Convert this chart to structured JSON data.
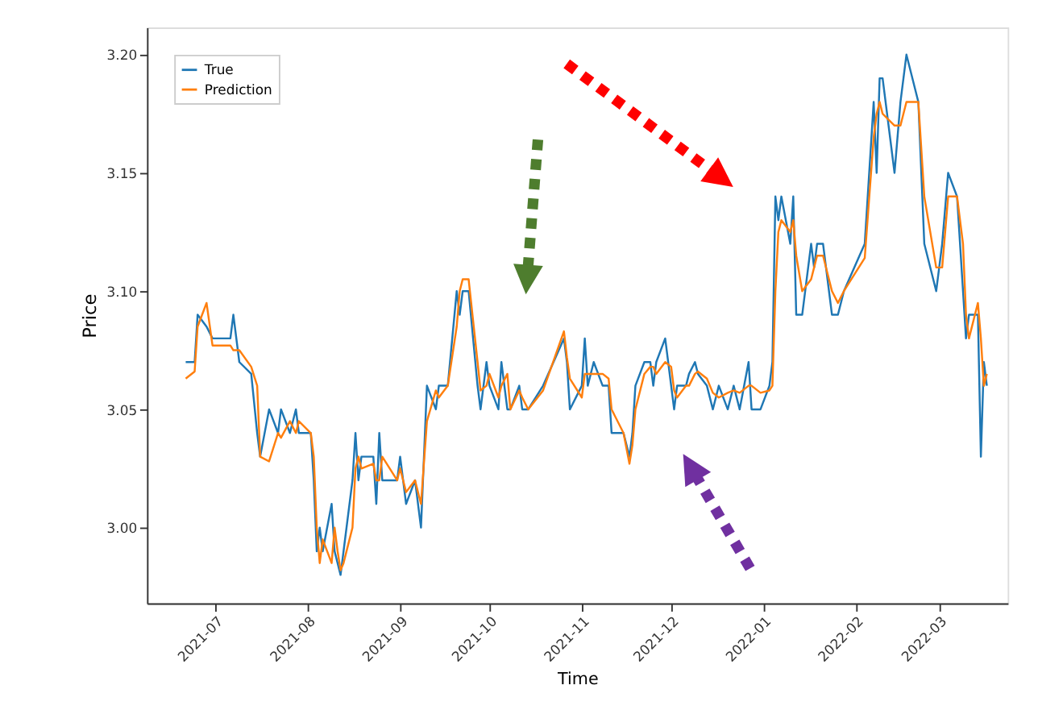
{
  "chart_data": {
    "type": "line",
    "xlabel": "Time",
    "ylabel": "Price",
    "x": [
      "2021-06-21",
      "2021-06-24",
      "2021-06-25",
      "2021-06-28",
      "2021-06-30",
      "2021-07-06",
      "2021-07-07",
      "2021-07-09",
      "2021-07-13",
      "2021-07-15",
      "2021-07-16",
      "2021-07-19",
      "2021-07-22",
      "2021-07-23",
      "2021-07-26",
      "2021-07-28",
      "2021-07-29",
      "2021-08-02",
      "2021-08-03",
      "2021-08-04",
      "2021-08-05",
      "2021-08-06",
      "2021-08-09",
      "2021-08-10",
      "2021-08-11",
      "2021-08-12",
      "2021-08-13",
      "2021-08-16",
      "2021-08-17",
      "2021-08-18",
      "2021-08-19",
      "2021-08-23",
      "2021-08-24",
      "2021-08-25",
      "2021-08-26",
      "2021-08-31",
      "2021-09-01",
      "2021-09-03",
      "2021-09-06",
      "2021-09-08",
      "2021-09-10",
      "2021-09-13",
      "2021-09-14",
      "2021-09-17",
      "2021-09-20",
      "2021-09-21",
      "2021-09-22",
      "2021-09-24",
      "2021-09-27",
      "2021-09-28",
      "2021-09-30",
      "2021-10-01",
      "2021-10-04",
      "2021-10-05",
      "2021-10-07",
      "2021-10-08",
      "2021-10-11",
      "2021-10-12",
      "2021-10-14",
      "2021-10-19",
      "2021-10-26",
      "2021-10-27",
      "2021-10-28",
      "2021-11-01",
      "2021-11-02",
      "2021-11-03",
      "2021-11-05",
      "2021-11-08",
      "2021-11-10",
      "2021-11-11",
      "2021-11-15",
      "2021-11-17",
      "2021-11-18",
      "2021-11-19",
      "2021-11-22",
      "2021-11-24",
      "2021-11-25",
      "2021-11-26",
      "2021-11-29",
      "2021-12-01",
      "2021-12-02",
      "2021-12-03",
      "2021-12-06",
      "2021-12-07",
      "2021-12-09",
      "2021-12-10",
      "2021-12-13",
      "2021-12-15",
      "2021-12-17",
      "2021-12-20",
      "2021-12-22",
      "2021-12-24",
      "2021-12-27",
      "2021-12-28",
      "2021-12-31",
      "2022-01-03",
      "2022-01-04",
      "2022-01-05",
      "2022-01-06",
      "2022-01-07",
      "2022-01-10",
      "2022-01-11",
      "2022-01-12",
      "2022-01-14",
      "2022-01-17",
      "2022-01-18",
      "2022-01-19",
      "2022-01-21",
      "2022-01-24",
      "2022-01-26",
      "2022-01-28",
      "2022-02-04",
      "2022-02-07",
      "2022-02-08",
      "2022-02-09",
      "2022-02-10",
      "2022-02-14",
      "2022-02-16",
      "2022-02-18",
      "2022-02-22",
      "2022-02-24",
      "2022-02-28",
      "2022-03-02",
      "2022-03-04",
      "2022-03-07",
      "2022-03-09",
      "2022-03-10",
      "2022-03-11",
      "2022-03-14",
      "2022-03-15",
      "2022-03-16",
      "2022-03-17"
    ],
    "series": [
      {
        "name": "True",
        "color": "#1f77b4",
        "values": [
          3.07,
          3.07,
          3.09,
          3.085,
          3.08,
          3.08,
          3.09,
          3.07,
          3.065,
          3.04,
          3.03,
          3.05,
          3.04,
          3.05,
          3.04,
          3.05,
          3.04,
          3.04,
          3.02,
          2.99,
          3.0,
          2.99,
          3.01,
          2.99,
          2.985,
          2.98,
          2.99,
          3.02,
          3.04,
          3.02,
          3.03,
          3.03,
          3.01,
          3.04,
          3.02,
          3.02,
          3.03,
          3.01,
          3.02,
          3.0,
          3.06,
          3.05,
          3.06,
          3.06,
          3.1,
          3.09,
          3.1,
          3.1,
          3.06,
          3.05,
          3.07,
          3.06,
          3.05,
          3.07,
          3.05,
          3.05,
          3.06,
          3.05,
          3.05,
          3.06,
          3.08,
          3.07,
          3.05,
          3.06,
          3.08,
          3.06,
          3.07,
          3.06,
          3.06,
          3.04,
          3.04,
          3.03,
          3.04,
          3.06,
          3.07,
          3.07,
          3.06,
          3.07,
          3.08,
          3.06,
          3.05,
          3.06,
          3.06,
          3.065,
          3.07,
          3.065,
          3.06,
          3.05,
          3.06,
          3.05,
          3.06,
          3.05,
          3.07,
          3.05,
          3.05,
          3.06,
          3.07,
          3.14,
          3.13,
          3.14,
          3.12,
          3.14,
          3.09,
          3.09,
          3.12,
          3.11,
          3.12,
          3.12,
          3.09,
          3.09,
          3.1,
          3.12,
          3.18,
          3.15,
          3.19,
          3.19,
          3.15,
          3.18,
          3.2,
          3.18,
          3.12,
          3.1,
          3.12,
          3.15,
          3.14,
          3.1,
          3.08,
          3.09,
          3.09,
          3.03,
          3.07,
          3.06
        ]
      },
      {
        "name": "Prediction",
        "color": "#ff7f0e",
        "values": [
          3.063,
          3.066,
          3.085,
          3.095,
          3.077,
          3.077,
          3.075,
          3.075,
          3.068,
          3.06,
          3.03,
          3.028,
          3.04,
          3.038,
          3.045,
          3.04,
          3.045,
          3.04,
          3.03,
          3.0,
          2.985,
          2.995,
          2.985,
          3.0,
          2.99,
          2.982,
          2.985,
          3.0,
          3.025,
          3.03,
          3.025,
          3.027,
          3.02,
          3.02,
          3.03,
          3.02,
          3.025,
          3.015,
          3.02,
          3.01,
          3.045,
          3.058,
          3.055,
          3.06,
          3.085,
          3.1,
          3.105,
          3.105,
          3.07,
          3.058,
          3.06,
          3.065,
          3.055,
          3.06,
          3.065,
          3.05,
          3.058,
          3.055,
          3.05,
          3.058,
          3.083,
          3.072,
          3.063,
          3.055,
          3.065,
          3.065,
          3.065,
          3.065,
          3.063,
          3.05,
          3.04,
          3.027,
          3.035,
          3.05,
          3.065,
          3.068,
          3.068,
          3.065,
          3.07,
          3.068,
          3.058,
          3.055,
          3.06,
          3.06,
          3.065,
          3.066,
          3.063,
          3.057,
          3.055,
          3.057,
          3.058,
          3.057,
          3.06,
          3.06,
          3.057,
          3.058,
          3.06,
          3.1,
          3.125,
          3.13,
          3.125,
          3.13,
          3.115,
          3.1,
          3.105,
          3.11,
          3.115,
          3.115,
          3.1,
          3.095,
          3.1,
          3.114,
          3.165,
          3.175,
          3.18,
          3.175,
          3.17,
          3.17,
          3.18,
          3.18,
          3.14,
          3.11,
          3.11,
          3.14,
          3.14,
          3.12,
          3.09,
          3.08,
          3.095,
          3.08,
          3.06,
          3.065
        ]
      }
    ],
    "xlim": [
      "2021-06-08",
      "2022-03-24"
    ],
    "xticks": [
      "2021-07",
      "2021-08",
      "2021-09",
      "2021-10",
      "2021-11",
      "2021-12",
      "2022-01",
      "2022-02",
      "2022-03"
    ],
    "ylim": [
      2.968,
      3.2115
    ],
    "yticks": [
      {
        "value": 3.0,
        "label": "3.00"
      },
      {
        "value": 3.05,
        "label": "3.05"
      },
      {
        "value": 3.1,
        "label": "3.10"
      },
      {
        "value": 3.15,
        "label": "3.15"
      },
      {
        "value": 3.2,
        "label": "3.20"
      }
    ],
    "grid": false,
    "legend": "top left",
    "line_style": "solid",
    "marker": "none"
  }
}
